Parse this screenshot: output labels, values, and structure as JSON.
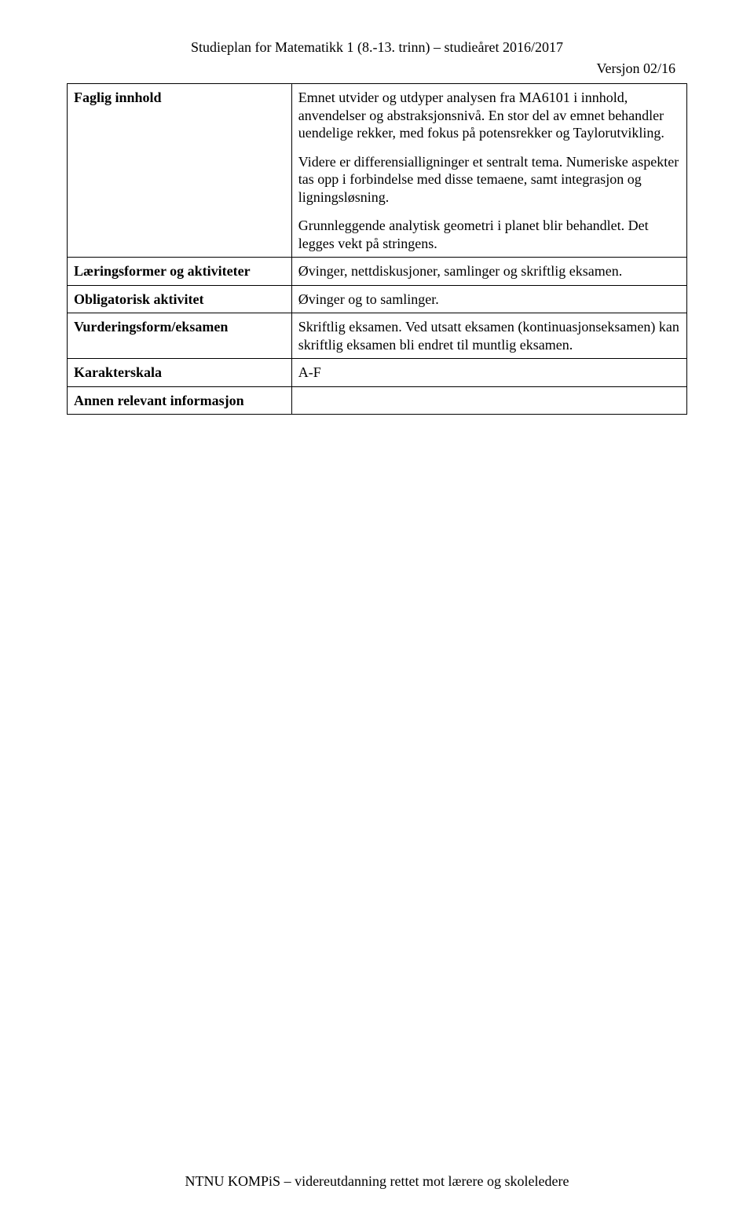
{
  "header": {
    "title": "Studieplan for Matematikk 1 (8.-13. trinn) – studieåret 2016/2017",
    "version": "Versjon 02/16"
  },
  "rows": [
    {
      "label": "Faglig innhold",
      "paragraphs": [
        "Emnet utvider og utdyper analysen fra MA6101 i innhold, anvendelser og abstraksjonsnivå. En stor del av emnet behandler uendelige rekker, med fokus på potensrekker og Taylorutvikling.",
        "Videre er differensialligninger et sentralt tema. Numeriske aspekter tas opp i forbindelse med disse temaene, samt integrasjon og ligningsløsning.",
        "Grunnleggende analytisk geometri i planet blir  behandlet. Det legges vekt på stringens."
      ]
    },
    {
      "label": "Læringsformer og aktiviteter",
      "paragraphs": [
        "Øvinger, nettdiskusjoner, samlinger og skriftlig eksamen."
      ]
    },
    {
      "label": "Obligatorisk aktivitet",
      "paragraphs": [
        "Øvinger og to samlinger."
      ]
    },
    {
      "label": "Vurderingsform/eksamen",
      "paragraphs": [
        "Skriftlig eksamen. Ved utsatt eksamen (kontinuasjonseksamen) kan skriftlig eksamen bli  endret til muntlig eksamen."
      ]
    },
    {
      "label": "Karakterskala",
      "paragraphs": [
        "A-F"
      ]
    },
    {
      "label": "Annen relevant informasjon",
      "paragraphs": []
    }
  ],
  "footer": {
    "text": "NTNU KOMPiS – videreutdanning rettet mot lærere og skoleledere"
  }
}
